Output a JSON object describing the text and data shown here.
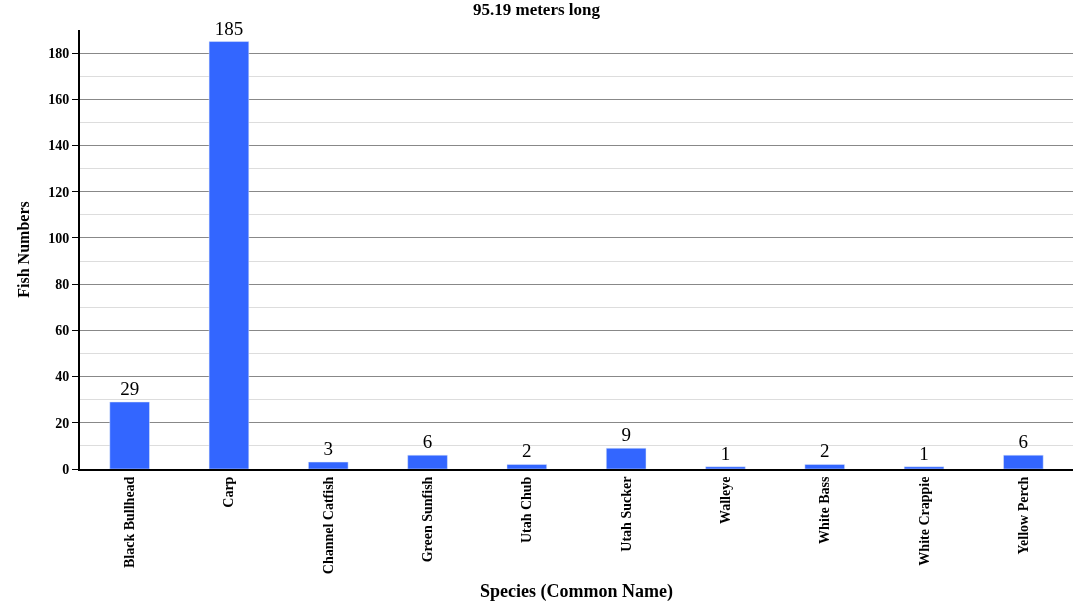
{
  "chart_data": {
    "type": "bar",
    "title": "95.19 meters long",
    "xlabel": "Species (Common Name)",
    "ylabel": "Fish Numbers",
    "categories": [
      "Black Bullhead",
      "Carp",
      "Channel Catfish",
      "Green Sunfish",
      "Utah Chub",
      "Utah Sucker",
      "Walleye",
      "White Bass",
      "White Crappie",
      "Yellow Perch"
    ],
    "values": [
      29,
      185,
      3,
      6,
      2,
      9,
      1,
      2,
      1,
      6
    ],
    "color": "#3366ff",
    "ylim": [
      0,
      190
    ],
    "yticks": [
      0,
      20,
      40,
      60,
      80,
      100,
      120,
      140,
      160,
      180
    ],
    "grid": "y",
    "data_labels": true
  }
}
